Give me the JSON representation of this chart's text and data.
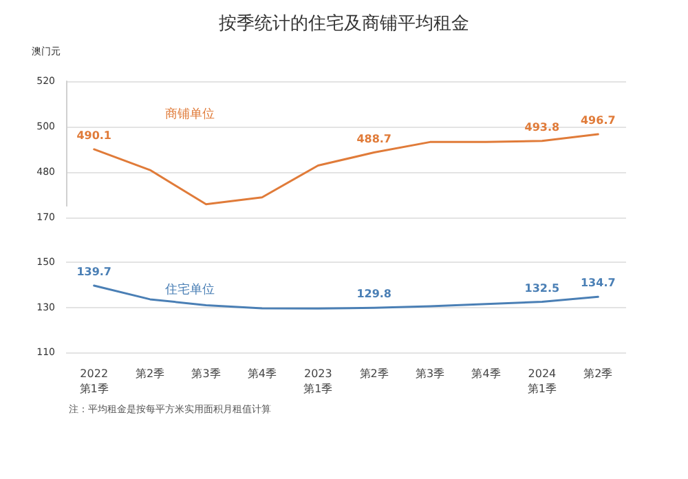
{
  "chart_data": [
    {
      "type": "line",
      "title": "按季统计的住宅及商铺平均租金",
      "ylabel": "澳门元",
      "categories": [
        null,
        null,
        null,
        null,
        null,
        null,
        null,
        null,
        null,
        null
      ],
      "tick_labels": "y",
      "ylim": [
        465,
        520
      ],
      "yticks": [
        480,
        500,
        520
      ],
      "grid": "y",
      "marker": "none",
      "line_style": "solid",
      "series": [
        {
          "name": "商铺单位",
          "color": "#e07b39",
          "values": [
            490.1,
            481,
            466,
            469,
            483,
            488.7,
            493.3,
            493.3,
            493.8,
            496.7
          ],
          "value_labels": [
            "490.1",
            null,
            null,
            null,
            null,
            "488.7",
            null,
            null,
            "493.8",
            "496.7"
          ]
        }
      ]
    },
    {
      "type": "line",
      "categories": [
        "2022\n第1季",
        "第2季",
        "第3季",
        "第4季",
        "2023\n第1季",
        "第2季",
        "第3季",
        "第4季",
        "2024\n第1季",
        "第2季"
      ],
      "ylim": [
        110,
        170
      ],
      "yticks": [
        110,
        130,
        150,
        170
      ],
      "grid": "y",
      "marker": "none",
      "line_style": "solid",
      "series": [
        {
          "name": "住宅单位",
          "color": "#4a7fb5",
          "values": [
            139.7,
            133.6,
            131,
            129.6,
            129.5,
            129.8,
            130.5,
            131.5,
            132.5,
            134.7
          ],
          "value_labels": [
            "139.7",
            null,
            null,
            null,
            null,
            "129.8",
            null,
            null,
            "132.5",
            "134.7"
          ]
        }
      ],
      "annotations": [
        "注：平均租金是按每平方米实用面积月租值计算"
      ]
    }
  ]
}
